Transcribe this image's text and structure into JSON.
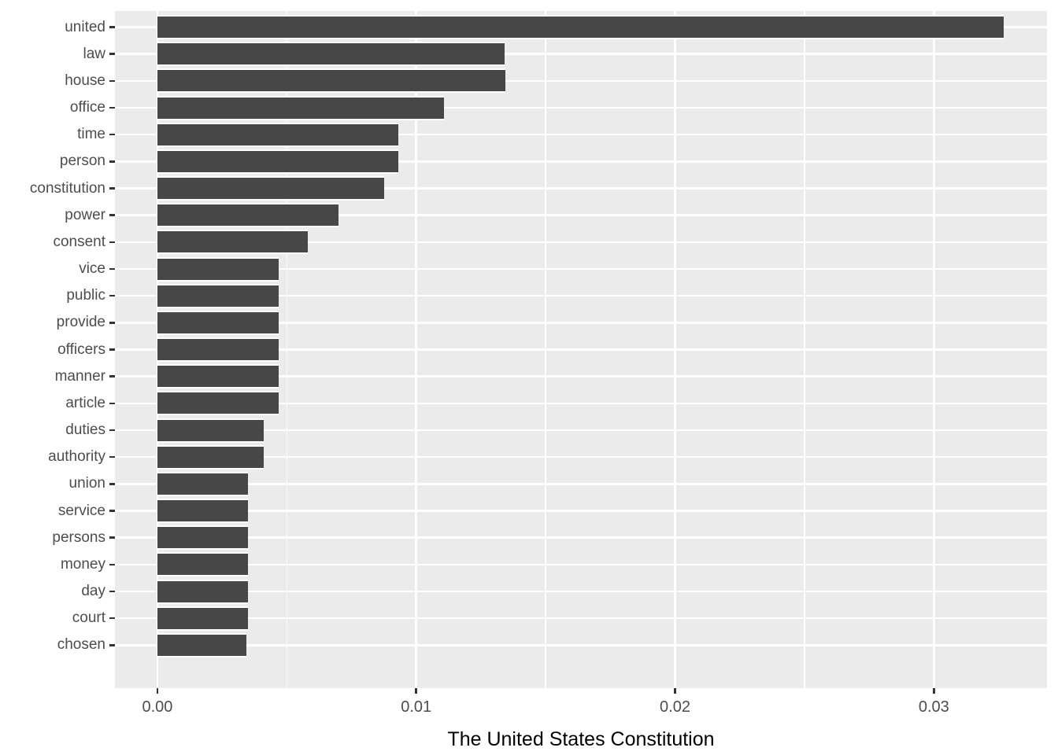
{
  "chart_data": {
    "type": "bar",
    "orientation": "horizontal",
    "title": "",
    "xlabel": "The United States Constitution",
    "ylabel": "",
    "categories": [
      "united",
      "law",
      "house",
      "office",
      "time",
      "person",
      "constitution",
      "power",
      "consent",
      "vice",
      "public",
      "provide",
      "officers",
      "manner",
      "article",
      "duties",
      "authority",
      "union",
      "service",
      "persons",
      "money",
      "day",
      "court",
      "chosen"
    ],
    "values": [
      0.0327,
      0.01343,
      0.01346,
      0.01108,
      0.00931,
      0.00932,
      0.00875,
      0.00701,
      0.00582,
      0.00468,
      0.00468,
      0.00468,
      0.00468,
      0.00468,
      0.00468,
      0.0041,
      0.0041,
      0.0035,
      0.0035,
      0.0035,
      0.0035,
      0.0035,
      0.0035,
      0.00345
    ],
    "x_ticks": {
      "labels": [
        "0.00",
        "0.01",
        "0.02",
        "0.03"
      ],
      "values": [
        0,
        0.01,
        0.02,
        0.03
      ]
    },
    "x_minor_gridlines": [
      0.005,
      0.015,
      0.025
    ],
    "xlim": [
      -0.00164,
      0.03437
    ],
    "grid": "on",
    "legend": "none",
    "bar_width_fraction": 0.9,
    "colors": {
      "bar": "#474747",
      "panel_background": "#EBEBEB",
      "gridline": "#FFFFFF",
      "axis_text": "#4D4D4D",
      "tick_mark": "#333333",
      "axis_title": "#000000",
      "figure_background": "#FFFFFF"
    }
  }
}
